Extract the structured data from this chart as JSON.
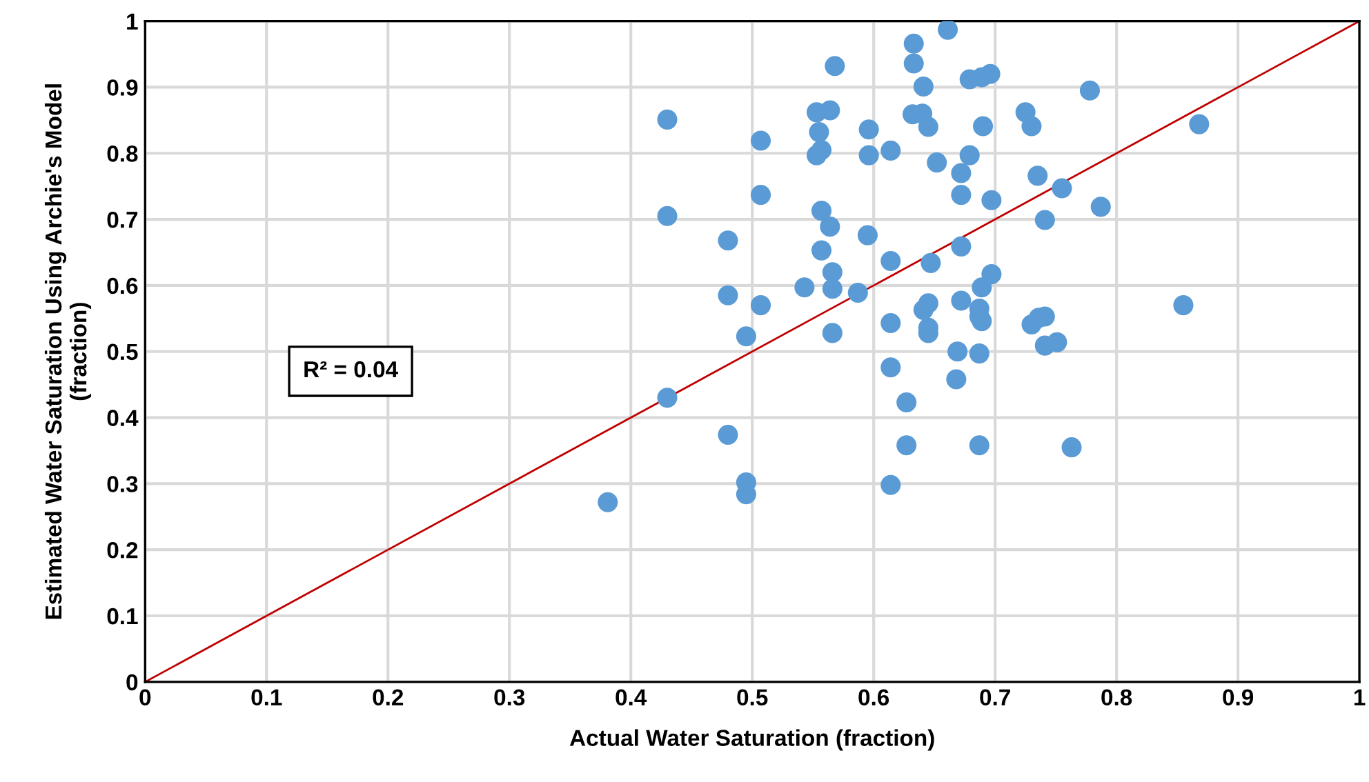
{
  "chart_data": {
    "type": "scatter",
    "xlabel": "Actual Water Saturation (fraction)",
    "ylabel": "Estimated Water Saturation Using Archie's Model\n(fraction)",
    "annotations": [
      "R² = 0.04"
    ],
    "xlim": [
      0,
      1
    ],
    "ylim": [
      0,
      1
    ],
    "xticks": [
      0,
      0.1,
      0.2,
      0.3,
      0.4,
      0.5,
      0.6,
      0.7,
      0.8,
      0.9,
      1
    ],
    "yticks": [
      0,
      0.1,
      0.2,
      0.3,
      0.4,
      0.5,
      0.6,
      0.7,
      0.8,
      0.9,
      1
    ],
    "grid": true,
    "legend": false,
    "series": [
      {
        "color": "#5b9bd5",
        "marker": "circle",
        "x": [
          0.381,
          0.43,
          0.43,
          0.43,
          0.48,
          0.48,
          0.48,
          0.495,
          0.495,
          0.495,
          0.507,
          0.507,
          0.507,
          0.543,
          0.553,
          0.555,
          0.553,
          0.557,
          0.557,
          0.557,
          0.564,
          0.564,
          0.566,
          0.566,
          0.566,
          0.568,
          0.587,
          0.595,
          0.596,
          0.596,
          0.614,
          0.614,
          0.614,
          0.614,
          0.614,
          0.627,
          0.627,
          0.632,
          0.633,
          0.633,
          0.64,
          0.641,
          0.641,
          0.645,
          0.645,
          0.645,
          0.645,
          0.647,
          0.652,
          0.661,
          0.668,
          0.669,
          0.672,
          0.672,
          0.672,
          0.672,
          0.679,
          0.679,
          0.687,
          0.687,
          0.687,
          0.687,
          0.689,
          0.689,
          0.689,
          0.69,
          0.696,
          0.697,
          0.697,
          0.725,
          0.73,
          0.73,
          0.735,
          0.736,
          0.741,
          0.741,
          0.741,
          0.751,
          0.755,
          0.763,
          0.778,
          0.787,
          0.855,
          0.868
        ],
        "values": [
          0.272,
          0.851,
          0.705,
          0.43,
          0.668,
          0.585,
          0.374,
          0.523,
          0.302,
          0.284,
          0.819,
          0.737,
          0.57,
          0.597,
          0.862,
          0.832,
          0.797,
          0.805,
          0.713,
          0.653,
          0.865,
          0.689,
          0.62,
          0.595,
          0.528,
          0.932,
          0.589,
          0.676,
          0.836,
          0.797,
          0.804,
          0.637,
          0.543,
          0.476,
          0.298,
          0.423,
          0.358,
          0.859,
          0.966,
          0.936,
          0.86,
          0.901,
          0.563,
          0.84,
          0.573,
          0.536,
          0.528,
          0.634,
          0.786,
          0.987,
          0.458,
          0.5,
          0.77,
          0.737,
          0.659,
          0.577,
          0.912,
          0.797,
          0.565,
          0.553,
          0.497,
          0.358,
          0.915,
          0.597,
          0.546,
          0.841,
          0.92,
          0.729,
          0.617,
          0.862,
          0.841,
          0.541,
          0.766,
          0.551,
          0.699,
          0.553,
          0.509,
          0.514,
          0.747,
          0.355,
          0.895,
          0.719,
          0.57,
          0.844
        ]
      },
      {
        "type": "line",
        "marker": "none",
        "color": "#c00000",
        "x": [
          0,
          1
        ],
        "values": [
          0,
          1
        ]
      }
    ]
  }
}
